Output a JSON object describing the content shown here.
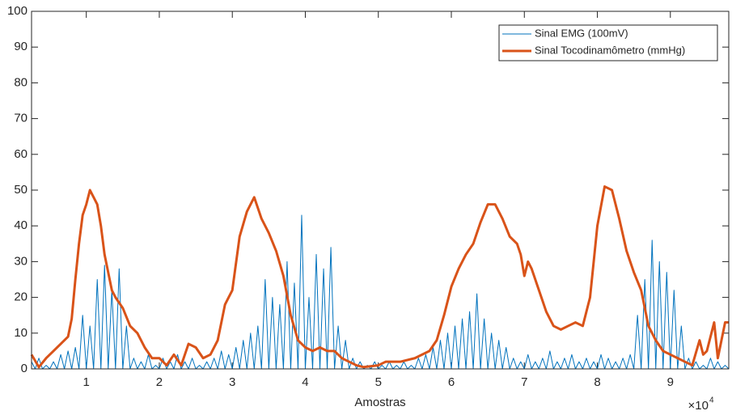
{
  "chart_data": {
    "type": "line",
    "xlabel": "Amostras",
    "x_exponent_base": "×10",
    "x_exponent_power": "4",
    "xlim": [
      2500,
      98000
    ],
    "ylim": [
      0,
      100
    ],
    "xticks": [
      {
        "value": 10000,
        "label": "1"
      },
      {
        "value": 20000,
        "label": "2"
      },
      {
        "value": 30000,
        "label": "3"
      },
      {
        "value": 40000,
        "label": "4"
      },
      {
        "value": 50000,
        "label": "5"
      },
      {
        "value": 60000,
        "label": "6"
      },
      {
        "value": 70000,
        "label": "7"
      },
      {
        "value": 80000,
        "label": "8"
      },
      {
        "value": 90000,
        "label": "9"
      }
    ],
    "yticks": [
      0,
      10,
      20,
      30,
      40,
      50,
      60,
      70,
      80,
      90,
      100
    ],
    "grid": false,
    "legend_position": "upper right",
    "series": [
      {
        "name": "Sinal EMG (100mV)",
        "color": "#0072BD",
        "width": 1,
        "x": [
          2500,
          3000,
          3500,
          4000,
          4500,
          5000,
          5500,
          6000,
          6500,
          7000,
          7500,
          8000,
          8500,
          9000,
          9500,
          10000,
          10500,
          11000,
          11500,
          12000,
          12500,
          13000,
          13500,
          14000,
          14500,
          15000,
          15500,
          16000,
          16500,
          17000,
          17500,
          18000,
          18500,
          19000,
          19500,
          20000,
          20500,
          21000,
          21500,
          22000,
          22500,
          23000,
          23500,
          24000,
          24500,
          25000,
          25500,
          26000,
          26500,
          27000,
          27500,
          28000,
          28500,
          29000,
          29500,
          30000,
          30500,
          31000,
          31500,
          32000,
          32500,
          33000,
          33500,
          34000,
          34500,
          35000,
          35500,
          36000,
          36500,
          37000,
          37500,
          38000,
          38500,
          39000,
          39500,
          40000,
          40500,
          41000,
          41500,
          42000,
          42500,
          43000,
          43500,
          44000,
          44500,
          45000,
          45500,
          46000,
          46500,
          47000,
          47500,
          48000,
          48500,
          49000,
          49500,
          50000,
          50500,
          51000,
          51500,
          52000,
          52500,
          53000,
          53500,
          54000,
          54500,
          55000,
          55500,
          56000,
          56500,
          57000,
          57500,
          58000,
          58500,
          59000,
          59500,
          60000,
          60500,
          61000,
          61500,
          62000,
          62500,
          63000,
          63500,
          64000,
          64500,
          65000,
          65500,
          66000,
          66500,
          67000,
          67500,
          68000,
          68500,
          69000,
          69500,
          70000,
          70500,
          71000,
          71500,
          72000,
          72500,
          73000,
          73500,
          74000,
          74500,
          75000,
          75500,
          76000,
          76500,
          77000,
          77500,
          78000,
          78500,
          79000,
          79500,
          80000,
          80500,
          81000,
          81500,
          82000,
          82500,
          83000,
          83500,
          84000,
          84500,
          85000,
          85500,
          86000,
          86500,
          87000,
          87500,
          88000,
          88500,
          89000,
          89500,
          90000,
          90500,
          91000,
          91500,
          92000,
          92500,
          93000,
          93500,
          94000,
          94500,
          95000,
          95500,
          96000,
          96500,
          97000,
          97500,
          98000
        ],
        "values": [
          2,
          0,
          3,
          0,
          1,
          0,
          2,
          0,
          4,
          0,
          5,
          0,
          6,
          0,
          15,
          0,
          12,
          0,
          25,
          0,
          29,
          0,
          22,
          0,
          28,
          0,
          12,
          0,
          3,
          0,
          2,
          0,
          4,
          0,
          1,
          0,
          3,
          0,
          2,
          0,
          4,
          0,
          2,
          0,
          3,
          0,
          1,
          0,
          2,
          0,
          3,
          0,
          5,
          0,
          4,
          0,
          6,
          0,
          8,
          0,
          10,
          0,
          12,
          0,
          25,
          0,
          20,
          0,
          18,
          0,
          30,
          0,
          24,
          0,
          43,
          0,
          20,
          0,
          32,
          0,
          28,
          0,
          34,
          0,
          12,
          0,
          8,
          0,
          3,
          0,
          2,
          0,
          1,
          0,
          2,
          0,
          1,
          0,
          2,
          0,
          1,
          0,
          2,
          0,
          1,
          0,
          3,
          0,
          4,
          0,
          6,
          0,
          8,
          0,
          10,
          0,
          12,
          0,
          14,
          0,
          16,
          0,
          21,
          0,
          14,
          0,
          10,
          0,
          8,
          0,
          6,
          0,
          3,
          0,
          2,
          0,
          4,
          0,
          2,
          0,
          3,
          0,
          5,
          0,
          2,
          0,
          3,
          0,
          4,
          0,
          2,
          0,
          3,
          0,
          2,
          0,
          4,
          0,
          3,
          0,
          2,
          0,
          3,
          0,
          4,
          0,
          15,
          0,
          25,
          0,
          36,
          0,
          30,
          0,
          27,
          0,
          22,
          0,
          12,
          0,
          3,
          0,
          2,
          0,
          1,
          0,
          3,
          0,
          2,
          0,
          1,
          0
        ]
      },
      {
        "name": "Sinal Tocodinamômetro (mmHg)",
        "color": "#D95319",
        "width": 3,
        "x": [
          2500,
          3500,
          4500,
          5500,
          6500,
          7500,
          8000,
          8500,
          9000,
          9500,
          10000,
          10500,
          11000,
          11500,
          12000,
          12500,
          13000,
          13500,
          14000,
          15000,
          16000,
          17000,
          18000,
          19000,
          20000,
          21000,
          22000,
          23000,
          24000,
          25000,
          26000,
          27000,
          28000,
          29000,
          29500,
          30000,
          31000,
          32000,
          33000,
          34000,
          35000,
          36000,
          37000,
          38000,
          39000,
          40000,
          41000,
          42000,
          43000,
          44000,
          45000,
          46000,
          47000,
          48000,
          50000,
          51000,
          53000,
          55000,
          57000,
          58000,
          59000,
          60000,
          61000,
          62000,
          63000,
          64000,
          65000,
          66000,
          67000,
          68000,
          69000,
          69500,
          70000,
          70500,
          71000,
          72000,
          73000,
          74000,
          75000,
          76000,
          77000,
          78000,
          79000,
          80000,
          81000,
          82000,
          83000,
          84000,
          85000,
          86000,
          87000,
          88000,
          89000,
          90000,
          91000,
          92000,
          93000,
          94000,
          94500,
          95000,
          96000,
          96500,
          97000,
          97500,
          98000
        ],
        "values": [
          4,
          0.5,
          3,
          5,
          7,
          9,
          14,
          25,
          35,
          43,
          46,
          50,
          48,
          46,
          40,
          32,
          27,
          22,
          20,
          17,
          12,
          10,
          6,
          3,
          3,
          1,
          4,
          1,
          7,
          6,
          3,
          4,
          8,
          18,
          20,
          22,
          37,
          44,
          48,
          42,
          38,
          33,
          26,
          15,
          8,
          6,
          5,
          6,
          5,
          5,
          3,
          2,
          1,
          0.5,
          1,
          2,
          2,
          3,
          5,
          8,
          15,
          23,
          28,
          32,
          35,
          41,
          46,
          46,
          42,
          37,
          35,
          32,
          26,
          30,
          28,
          22,
          16,
          12,
          11,
          12,
          13,
          12,
          20,
          40,
          51,
          50,
          42,
          33,
          27,
          22,
          12,
          8,
          5,
          4,
          3,
          2,
          1,
          8,
          4,
          5,
          13,
          3,
          8,
          13,
          13
        ]
      }
    ]
  }
}
